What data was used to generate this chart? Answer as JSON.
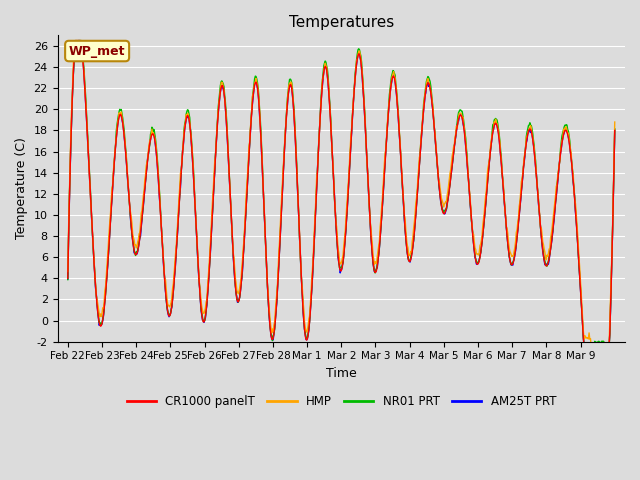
{
  "title": "Temperatures",
  "ylabel": "Temperature (C)",
  "xlabel": "Time",
  "annotation": "WP_met",
  "annotation_color": "#8B0000",
  "annotation_bg": "#FFFFCC",
  "annotation_border": "#B8860B",
  "ylim": [
    -2,
    27
  ],
  "xtick_labels": [
    "Feb 22",
    "Feb 23",
    "Feb 24",
    "Feb 25",
    "Feb 26",
    "Feb 27",
    "Feb 28",
    "Mar 1",
    "Mar 2",
    "Mar 3",
    "Mar 4",
    "Mar 5",
    "Mar 6",
    "Mar 7",
    "Mar 8",
    "Mar 9"
  ],
  "ytick_labels": [
    "-2",
    "0",
    "2",
    "4",
    "6",
    "8",
    "10",
    "12",
    "14",
    "16",
    "18",
    "20",
    "22",
    "24",
    "26"
  ],
  "ytick_values": [
    -2,
    0,
    2,
    4,
    6,
    8,
    10,
    12,
    14,
    16,
    18,
    20,
    22,
    24,
    26
  ],
  "legend_entries": [
    "CR1000 panelT",
    "HMP",
    "NR01 PRT",
    "AM25T PRT"
  ],
  "legend_colors": [
    "#FF0000",
    "#FFA500",
    "#00BB00",
    "#0000FF"
  ],
  "bg_color": "#DCDCDC",
  "plot_bg_color": "#DCDCDC",
  "grid_color": "#FFFFFF",
  "line_width": 1.0
}
